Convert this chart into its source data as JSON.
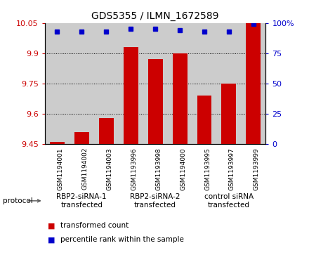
{
  "title": "GDS5355 / ILMN_1672589",
  "samples": [
    "GSM1194001",
    "GSM1194002",
    "GSM1194003",
    "GSM1193996",
    "GSM1193998",
    "GSM1194000",
    "GSM1193995",
    "GSM1193997",
    "GSM1193999"
  ],
  "transformed_counts": [
    9.46,
    9.51,
    9.58,
    9.93,
    9.87,
    9.9,
    9.69,
    9.75,
    10.05
  ],
  "percentile_ranks": [
    93,
    93,
    93,
    95,
    95,
    94,
    93,
    93,
    99
  ],
  "ylim_left": [
    9.45,
    10.05
  ],
  "ylim_right": [
    0,
    100
  ],
  "yticks_left": [
    9.45,
    9.6,
    9.75,
    9.9,
    10.05
  ],
  "ytick_labels_left": [
    "9.45",
    "9.6",
    "9.75",
    "9.9",
    "10.05"
  ],
  "yticks_right": [
    0,
    25,
    50,
    75,
    100
  ],
  "ytick_labels_right": [
    "0",
    "25",
    "50",
    "75",
    "100%"
  ],
  "groups": [
    {
      "label": "RBP2-siRNA-1\ntransfected",
      "indices": [
        0,
        1,
        2
      ],
      "color": "#ccffcc"
    },
    {
      "label": "RBP2-siRNA-2\ntransfected",
      "indices": [
        3,
        4,
        5
      ],
      "color": "#66dd66"
    },
    {
      "label": "control siRNA\ntransfected",
      "indices": [
        6,
        7,
        8
      ],
      "color": "#44cc44"
    }
  ],
  "bar_color": "#cc0000",
  "dot_color": "#0000cc",
  "bar_width": 0.6,
  "bg_color_sample": "#cccccc",
  "legend_bar_label": "transformed count",
  "legend_dot_label": "percentile rank within the sample",
  "protocol_label": "protocol"
}
